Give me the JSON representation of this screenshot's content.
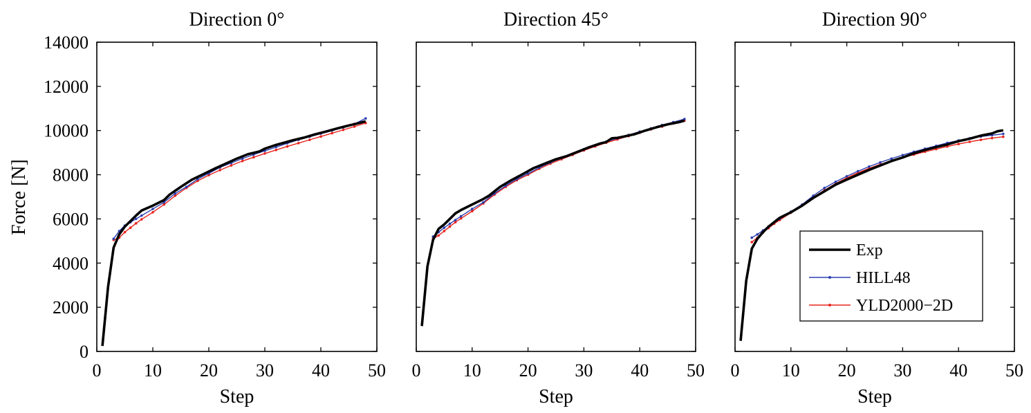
{
  "figure": {
    "ylabel": "Force [N]"
  },
  "colors": {
    "exp": "#000000",
    "hill": "#2b3fb0",
    "yld": "#e8231c"
  },
  "legend": {
    "placement": "lower-right of third panel",
    "items": [
      "Exp",
      "HILL48",
      "YLD2000−2D"
    ]
  },
  "chart_data": [
    {
      "type": "line",
      "title": "Direction 0°",
      "xlabel": "Step",
      "ylabel": "Force [N]",
      "xlim": [
        0,
        50
      ],
      "ylim": [
        0,
        14000
      ],
      "xticks": [
        0,
        10,
        20,
        30,
        40,
        50
      ],
      "yticks": [
        0,
        2000,
        4000,
        6000,
        8000,
        10000,
        12000,
        14000
      ],
      "grid": false,
      "series": [
        {
          "name": "Exp",
          "x": [
            1,
            2,
            3,
            4,
            5,
            6,
            7,
            8,
            10,
            12,
            13,
            15,
            17,
            19,
            21,
            23,
            25,
            27,
            29,
            30,
            32,
            33,
            35,
            37,
            39,
            41,
            43,
            45,
            47,
            48
          ],
          "y": [
            250,
            2900,
            4700,
            5300,
            5650,
            5900,
            6150,
            6380,
            6600,
            6850,
            7100,
            7450,
            7780,
            8020,
            8270,
            8500,
            8730,
            8930,
            9050,
            9180,
            9350,
            9420,
            9560,
            9680,
            9830,
            9960,
            10100,
            10230,
            10350,
            10420
          ]
        },
        {
          "name": "HILL48",
          "x": [
            3,
            4,
            5,
            6,
            7,
            8,
            10,
            12,
            14,
            16,
            18,
            20,
            22,
            24,
            26,
            28,
            30,
            32,
            34,
            36,
            38,
            40,
            42,
            44,
            46,
            48
          ],
          "y": [
            5100,
            5450,
            5700,
            5850,
            6000,
            6150,
            6450,
            6750,
            7150,
            7450,
            7800,
            8060,
            8330,
            8530,
            8730,
            8910,
            9080,
            9250,
            9420,
            9580,
            9720,
            9860,
            10000,
            10140,
            10300,
            10550
          ]
        },
        {
          "name": "YLD2000−2D",
          "x": [
            3,
            4,
            5,
            6,
            7,
            8,
            10,
            12,
            14,
            16,
            18,
            20,
            22,
            24,
            26,
            28,
            30,
            32,
            34,
            36,
            38,
            40,
            42,
            44,
            46,
            48
          ],
          "y": [
            5050,
            5150,
            5400,
            5600,
            5800,
            5980,
            6300,
            6650,
            7050,
            7400,
            7720,
            7980,
            8210,
            8420,
            8620,
            8790,
            8960,
            9120,
            9280,
            9430,
            9580,
            9730,
            9880,
            10030,
            10180,
            10340
          ]
        }
      ]
    },
    {
      "type": "line",
      "title": "Direction 45°",
      "xlabel": "Step",
      "ylabel": "",
      "xlim": [
        0,
        50
      ],
      "ylim": [
        0,
        14000
      ],
      "xticks": [
        0,
        10,
        20,
        30,
        40,
        50
      ],
      "yticks": [
        0,
        2000,
        4000,
        6000,
        8000,
        10000,
        12000,
        14000
      ],
      "grid": false,
      "series": [
        {
          "name": "Exp",
          "x": [
            1,
            2,
            3,
            4,
            5,
            6,
            7,
            8,
            10,
            12,
            13,
            15,
            17,
            19,
            21,
            23,
            25,
            27,
            29,
            31,
            33,
            34,
            35,
            36,
            37,
            39,
            41,
            43,
            45,
            47,
            48
          ],
          "y": [
            1150,
            3850,
            5050,
            5550,
            5750,
            6000,
            6250,
            6400,
            6650,
            6900,
            7050,
            7450,
            7750,
            8020,
            8300,
            8500,
            8700,
            8850,
            9050,
            9250,
            9420,
            9480,
            9650,
            9670,
            9720,
            9830,
            10000,
            10150,
            10280,
            10380,
            10450
          ]
        },
        {
          "name": "HILL48",
          "x": [
            3,
            4,
            5,
            6,
            7,
            8,
            10,
            12,
            14,
            16,
            18,
            20,
            22,
            24,
            26,
            28,
            30,
            32,
            34,
            36,
            38,
            40,
            42,
            44,
            46,
            48
          ],
          "y": [
            5200,
            5400,
            5600,
            5780,
            5950,
            6120,
            6450,
            6750,
            7150,
            7500,
            7800,
            8050,
            8320,
            8550,
            8750,
            8950,
            9150,
            9330,
            9500,
            9650,
            9800,
            9950,
            10100,
            10250,
            10380,
            10520
          ]
        },
        {
          "name": "YLD2000−2D",
          "x": [
            3,
            4,
            5,
            6,
            7,
            8,
            10,
            12,
            14,
            16,
            18,
            20,
            22,
            24,
            26,
            28,
            30,
            32,
            34,
            36,
            38,
            40,
            42,
            44,
            46,
            48
          ],
          "y": [
            5100,
            5250,
            5450,
            5650,
            5850,
            6020,
            6350,
            6700,
            7100,
            7450,
            7750,
            8000,
            8270,
            8500,
            8700,
            8900,
            9100,
            9280,
            9450,
            9600,
            9750,
            9900,
            10050,
            10180,
            10320,
            10450
          ]
        }
      ]
    },
    {
      "type": "line",
      "title": "Direction 90°",
      "xlabel": "Step",
      "ylabel": "",
      "xlim": [
        0,
        50
      ],
      "ylim": [
        0,
        14000
      ],
      "xticks": [
        0,
        10,
        20,
        30,
        40,
        50
      ],
      "yticks": [
        0,
        2000,
        4000,
        6000,
        8000,
        10000,
        12000,
        14000
      ],
      "grid": false,
      "series": [
        {
          "name": "Exp",
          "x": [
            1,
            2,
            3,
            4,
            5,
            6,
            7,
            8,
            10,
            12,
            14,
            16,
            18,
            20,
            22,
            24,
            26,
            28,
            30,
            32,
            34,
            36,
            38,
            40,
            42,
            44,
            46,
            47,
            48
          ],
          "y": [
            480,
            3200,
            4650,
            5100,
            5400,
            5650,
            5850,
            6050,
            6300,
            6600,
            6950,
            7250,
            7550,
            7780,
            8000,
            8220,
            8420,
            8620,
            8780,
            8970,
            9120,
            9250,
            9370,
            9520,
            9630,
            9770,
            9870,
            9970,
            10010
          ]
        },
        {
          "name": "HILL48",
          "x": [
            3,
            4,
            5,
            6,
            7,
            8,
            10,
            12,
            14,
            16,
            18,
            20,
            22,
            24,
            26,
            28,
            30,
            32,
            34,
            36,
            38,
            40,
            42,
            44,
            46,
            48
          ],
          "y": [
            5150,
            5300,
            5480,
            5660,
            5840,
            6000,
            6330,
            6650,
            7050,
            7400,
            7680,
            7930,
            8160,
            8370,
            8560,
            8730,
            8890,
            9040,
            9180,
            9310,
            9440,
            9550,
            9650,
            9730,
            9790,
            9850
          ]
        },
        {
          "name": "YLD2000−2D",
          "x": [
            3,
            4,
            5,
            6,
            7,
            8,
            10,
            12,
            14,
            16,
            18,
            20,
            22,
            24,
            26,
            28,
            30,
            32,
            34,
            36,
            38,
            40,
            42,
            44,
            46,
            48
          ],
          "y": [
            4950,
            5150,
            5380,
            5580,
            5780,
            5950,
            6280,
            6600,
            6980,
            7300,
            7600,
            7860,
            8090,
            8290,
            8470,
            8630,
            8780,
            8910,
            9040,
            9160,
            9280,
            9390,
            9490,
            9580,
            9660,
            9720
          ]
        }
      ]
    }
  ]
}
